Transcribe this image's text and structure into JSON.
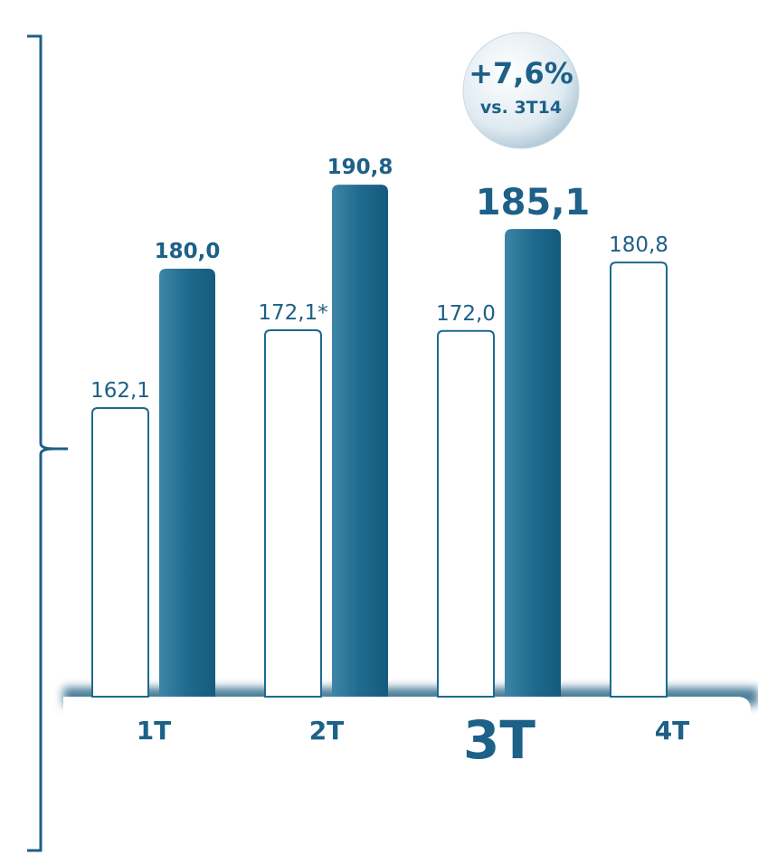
{
  "chart_data": {
    "type": "bar",
    "categories": [
      "1T",
      "2T",
      "3T",
      "4T"
    ],
    "highlight_category": 2,
    "series": [
      {
        "color": "#1d6a8f",
        "style": "outline",
        "values": [
          162.1,
          172.1,
          172.0,
          180.8
        ],
        "value_labels": [
          "162,1",
          "172,1*",
          "172,0",
          "180,8"
        ]
      },
      {
        "color": "#1b6488",
        "style": "filled",
        "values": [
          180.0,
          190.8,
          185.1,
          null
        ],
        "value_labels": [
          "180,0",
          "190,8",
          "185,1",
          null
        ]
      }
    ],
    "ylim": [
      125,
      200
    ],
    "annotations": [
      "+7,6%",
      "vs. 3T14"
    ]
  }
}
